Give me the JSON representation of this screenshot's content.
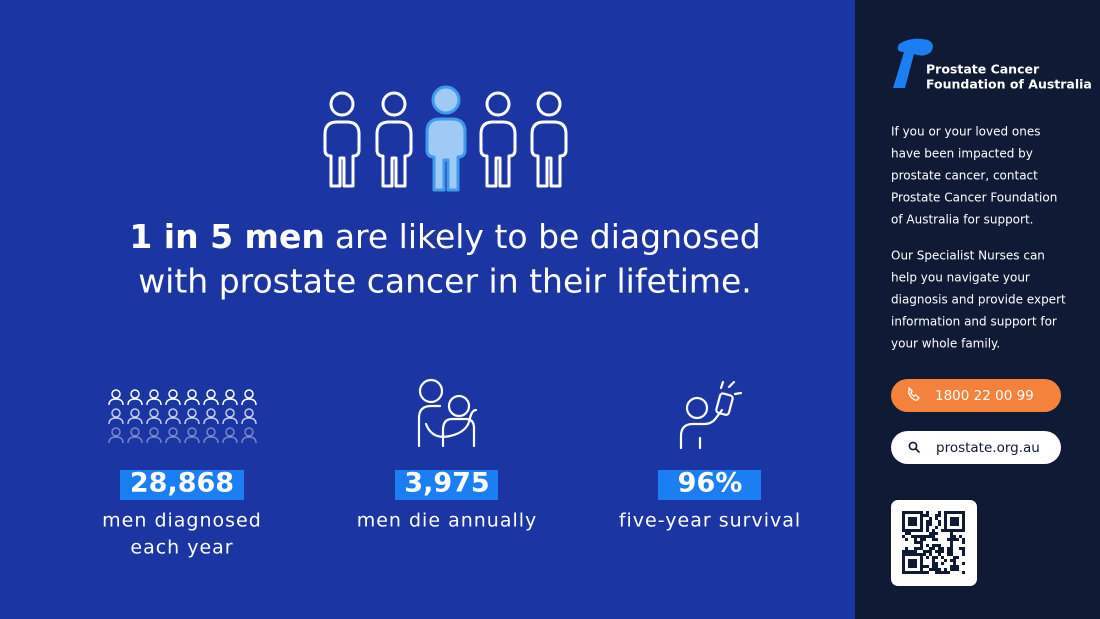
{
  "headline": {
    "emphasis": "1 in 5 men",
    "lines": [
      "are likely to be diagnosed",
      "with prostate cancer in their lifetime."
    ]
  },
  "stats": [
    {
      "value": "28,868",
      "label": [
        "men diagnosed",
        "each year"
      ]
    },
    {
      "value": "3,975",
      "label": [
        "men die annually"
      ]
    },
    {
      "value": "96%",
      "label": [
        "five-year survival"
      ]
    }
  ],
  "sidebar": {
    "org_name": [
      "Prostate Cancer",
      "Foundation of Australia"
    ],
    "paragraphs": [
      [
        "If you or your loved ones",
        "have been impacted by",
        "prostate cancer, contact",
        "Prostate Cancer Foundation",
        "of Australia for support."
      ],
      [
        "Our Specialist Nurses can",
        "help you navigate your",
        "diagnosis and provide expert",
        "information and support for",
        "your whole family."
      ]
    ],
    "phone": "1800 22 00 99",
    "website": "prostate.org.au"
  }
}
